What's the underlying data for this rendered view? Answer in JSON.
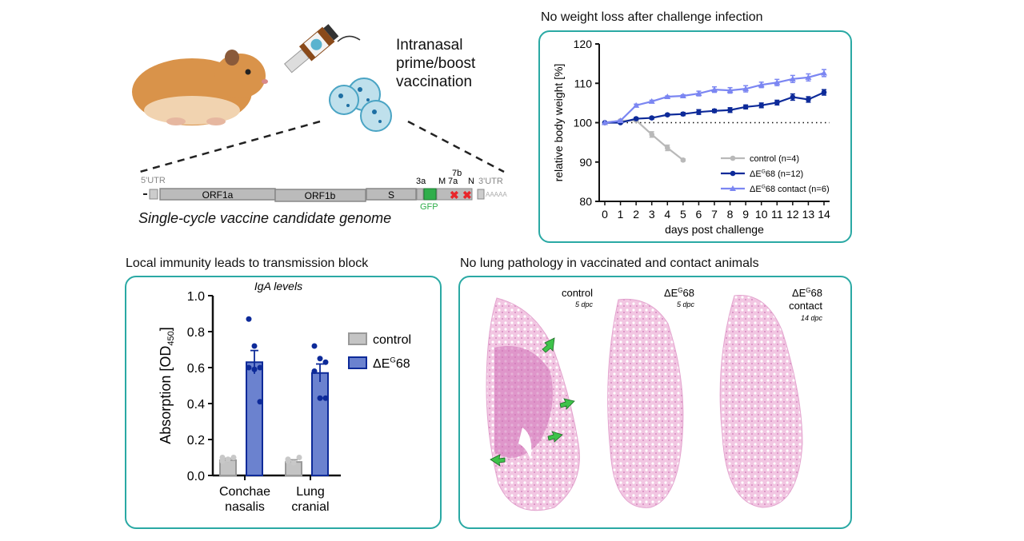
{
  "vaccination": {
    "line1": "Intranasal",
    "line2": "prime/boost",
    "line3": "vaccination"
  },
  "genome": {
    "caption": "Single-cycle vaccine candidate genome",
    "utr5": "5'UTR",
    "utr3": "3'UTR",
    "polyA": "AAAAA",
    "genes": [
      "ORF1a",
      "ORF1b",
      "S",
      "3a",
      "M",
      "7a",
      "7b",
      "N"
    ],
    "insert": "GFP"
  },
  "weight_panel": {
    "title": "No weight loss after challenge infection"
  },
  "iga_panel": {
    "title": "Local immunity leads to transmission block"
  },
  "lung_panel": {
    "title": "No lung pathology in vaccinated and contact animals",
    "images": [
      {
        "label": "control",
        "sub": "5 dpc"
      },
      {
        "label": "ΔEG68",
        "sub": "5 dpc"
      },
      {
        "label": "ΔEG68 contact",
        "sub": "14 dpc"
      }
    ]
  },
  "colors": {
    "panel_border": "#2aa9a4",
    "control": "#b9b9b9",
    "deltaE": "#0d2a99",
    "contact": "#7b86f2",
    "bar_fill": "#6b82cf",
    "gfp": "#2fae4a",
    "deletion": "#e8262b",
    "arrow": "#3ec24a",
    "he_stain": "#e7a6d0"
  },
  "chart_data": [
    {
      "type": "line",
      "xlabel": "days post challenge",
      "ylabel": "relative body weight [%]",
      "xlim": [
        0,
        14
      ],
      "ylim": [
        80,
        120
      ],
      "xticks": [
        "0",
        "1",
        "2",
        "3",
        "4",
        "5",
        "6",
        "7",
        "8",
        "9",
        "10",
        "11",
        "12",
        "13",
        "14"
      ],
      "yticks": [
        "80",
        "90",
        "100",
        "110",
        "120"
      ],
      "reference_line": 100,
      "legend": "bottom-right",
      "series": [
        {
          "name": "control (n=4)",
          "x": [
            0,
            1,
            2,
            3,
            4,
            5
          ],
          "y": [
            100,
            100.5,
            100.6,
            97,
            93.6,
            90.5
          ],
          "err": [
            0,
            0.3,
            0.3,
            0.7,
            0.7,
            0.3
          ]
        },
        {
          "name": "ΔEG68 (n=12)",
          "x": [
            0,
            1,
            2,
            3,
            4,
            5,
            6,
            7,
            8,
            9,
            10,
            11,
            12,
            13,
            14
          ],
          "y": [
            100,
            100,
            101,
            101.2,
            102,
            102.2,
            102.7,
            103,
            103.2,
            104,
            104.4,
            105.1,
            106.5,
            105.9,
            107.7
          ],
          "err": [
            0,
            0.2,
            0.3,
            0.3,
            0.3,
            0.4,
            0.6,
            0.4,
            0.6,
            0.5,
            0.6,
            0.6,
            0.8,
            0.7,
            0.7
          ]
        },
        {
          "name": "ΔEG68 contact (n=6)",
          "x": [
            0,
            1,
            2,
            3,
            4,
            5,
            6,
            7,
            8,
            9,
            10,
            11,
            12,
            13,
            14
          ],
          "y": [
            100,
            100.5,
            104.4,
            105.4,
            106.6,
            106.8,
            107.4,
            108.4,
            108.2,
            108.6,
            109.6,
            110.2,
            111.1,
            111.5,
            112.6
          ],
          "err": [
            0,
            0.2,
            0.3,
            0.3,
            0.2,
            0.3,
            0.6,
            0.7,
            0.7,
            0.8,
            0.7,
            0.8,
            0.9,
            0.9,
            0.9
          ]
        }
      ]
    },
    {
      "type": "bar",
      "title": "IgA levels",
      "ylabel": "Absorption [OD450]",
      "ylim": [
        0,
        1.0
      ],
      "yticks": [
        "0.0",
        "0.2",
        "0.4",
        "0.6",
        "0.8",
        "1.0"
      ],
      "categories": [
        "Conchae nasalis",
        "Lung cranial"
      ],
      "category_lines": [
        [
          "Conchae",
          "nasalis"
        ],
        [
          "Lung",
          "cranial"
        ]
      ],
      "legend": "right",
      "series": [
        {
          "name": "control",
          "values": [
            0.085,
            0.075
          ],
          "err": [
            0.01,
            0.012
          ],
          "points": [
            [
              0.1,
              0.09,
              0.1,
              0.08
            ],
            [
              0.09,
              0.07,
              0.1,
              0.08
            ]
          ]
        },
        {
          "name": "ΔEG68",
          "values": [
            0.63,
            0.57
          ],
          "err": [
            0.065,
            0.05
          ],
          "points": [
            [
              0.87,
              0.72,
              0.6,
              0.6,
              0.59,
              0.41
            ],
            [
              0.72,
              0.65,
              0.63,
              0.58,
              0.43,
              0.43
            ]
          ]
        }
      ]
    }
  ]
}
